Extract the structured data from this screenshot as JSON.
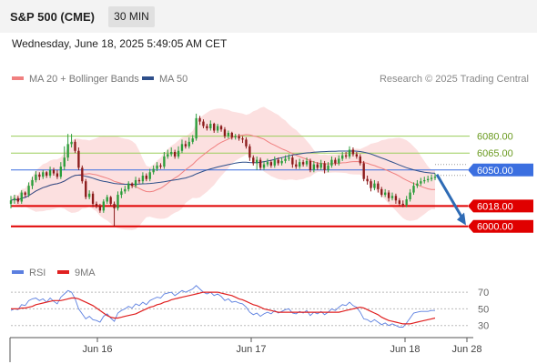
{
  "header": {
    "title": "S&P 500 (CME)",
    "timeframe": "30 MIN"
  },
  "datetime": "Wednesday, June 18, 2025 5:49:05 AM CET",
  "legend": {
    "items": [
      {
        "label": "MA 20 + Bollinger Bands",
        "color": "#f08080"
      },
      {
        "label": "MA 50",
        "color": "#2e4f8a"
      }
    ],
    "source": "Research © 2025 Trading Central"
  },
  "rsi_legend": {
    "items": [
      {
        "label": "RSI",
        "color": "#5b7fe0"
      },
      {
        "label": "9MA",
        "color": "#e02020"
      }
    ]
  },
  "colors": {
    "up": "#2a9d3a",
    "down": "#8b1a1a",
    "bollinger": "#fbd5d5",
    "ma20": "#f08080",
    "ma50": "#2e4f8a",
    "pivot": "#3b6fe0",
    "support": "#e00000",
    "resistance": "#9acd5a",
    "arrow": "#2e6bb5"
  },
  "chart_data": [
    {
      "type": "candlestick",
      "ylim": [
        5982,
        6108
      ],
      "x_ticks": [
        "Jun 16",
        "Jun 17",
        "Jun 18",
        "Jun 28"
      ],
      "levels": [
        {
          "label": "6080.00",
          "value": 6080,
          "kind": "resistance"
        },
        {
          "label": "6065.00",
          "value": 6065,
          "kind": "resistance"
        },
        {
          "label": "6050.00",
          "value": 6050,
          "kind": "pivot"
        },
        {
          "label": "6018.00",
          "value": 6018,
          "kind": "support"
        },
        {
          "label": "6000.00",
          "value": 6000,
          "kind": "support"
        }
      ],
      "close": [
        6023,
        6025,
        6022,
        6030,
        6028,
        6036,
        6041,
        6046,
        6044,
        6048,
        6045,
        6050,
        6047,
        6044,
        6053,
        6061,
        6073,
        6075,
        6067,
        6052,
        6040,
        6026,
        6029,
        6020,
        6018,
        6014,
        6022,
        6026,
        6020,
        6016,
        6028,
        6031,
        6033,
        6038,
        6036,
        6041,
        6040,
        6045,
        6042,
        6048,
        6051,
        6054,
        6053,
        6062,
        6064,
        6066,
        6062,
        6067,
        6073,
        6071,
        6075,
        6078,
        6096,
        6093,
        6089,
        6087,
        6091,
        6085,
        6089,
        6086,
        6080,
        6083,
        6079,
        6080,
        6078,
        6077,
        6071,
        6061,
        6056,
        6059,
        6052,
        6055,
        6057,
        6054,
        6059,
        6056,
        6058,
        6060,
        6061,
        6055,
        6053,
        6057,
        6055,
        6058,
        6050,
        6055,
        6052,
        6056,
        6050,
        6054,
        6059,
        6056,
        6060,
        6063,
        6062,
        6068,
        6064,
        6062,
        6056,
        6042,
        6040,
        6034,
        6038,
        6033,
        6028,
        6030,
        6025,
        6027,
        6023,
        6020,
        6019,
        6024,
        6030,
        6036,
        6038,
        6040,
        6041,
        6042,
        6043,
        6044
      ],
      "open": [
        6020,
        6023,
        6025,
        6022,
        6030,
        6028,
        6036,
        6041,
        6046,
        6044,
        6048,
        6045,
        6050,
        6047,
        6044,
        6053,
        6061,
        6073,
        6075,
        6067,
        6052,
        6040,
        6026,
        6029,
        6020,
        6018,
        6014,
        6022,
        6026,
        6020,
        6016,
        6028,
        6031,
        6033,
        6038,
        6036,
        6041,
        6040,
        6045,
        6042,
        6048,
        6051,
        6054,
        6053,
        6062,
        6064,
        6066,
        6062,
        6067,
        6073,
        6071,
        6075,
        6078,
        6096,
        6093,
        6089,
        6087,
        6091,
        6085,
        6089,
        6086,
        6080,
        6083,
        6079,
        6080,
        6078,
        6077,
        6071,
        6061,
        6056,
        6059,
        6052,
        6055,
        6057,
        6054,
        6059,
        6056,
        6058,
        6060,
        6061,
        6055,
        6053,
        6057,
        6055,
        6058,
        6050,
        6055,
        6052,
        6056,
        6050,
        6054,
        6059,
        6056,
        6060,
        6063,
        6062,
        6068,
        6064,
        6062,
        6056,
        6042,
        6040,
        6034,
        6038,
        6033,
        6028,
        6030,
        6025,
        6027,
        6023,
        6020,
        6019,
        6024,
        6030,
        6036,
        6038,
        6040,
        6041,
        6042,
        6043
      ],
      "high": [
        6027,
        6028,
        6027,
        6032,
        6031,
        6039,
        6044,
        6049,
        6048,
        6050,
        6049,
        6053,
        6052,
        6050,
        6057,
        6071,
        6082,
        6082,
        6077,
        6070,
        6054,
        6042,
        6032,
        6031,
        6022,
        6020,
        6024,
        6028,
        6027,
        6022,
        6031,
        6034,
        6036,
        6040,
        6039,
        6044,
        6043,
        6048,
        6047,
        6051,
        6054,
        6057,
        6056,
        6066,
        6068,
        6070,
        6068,
        6071,
        6077,
        6076,
        6079,
        6081,
        6100,
        6098,
        6095,
        6091,
        6094,
        6092,
        6091,
        6090,
        6088,
        6085,
        6084,
        6082,
        6082,
        6080,
        6079,
        6073,
        6063,
        6062,
        6061,
        6058,
        6060,
        6059,
        6062,
        6061,
        6061,
        6063,
        6064,
        6063,
        6059,
        6060,
        6059,
        6061,
        6060,
        6058,
        6057,
        6059,
        6058,
        6057,
        6062,
        6061,
        6063,
        6066,
        6066,
        6071,
        6070,
        6066,
        6064,
        6058,
        6045,
        6042,
        6041,
        6040,
        6035,
        6033,
        6032,
        6030,
        6029,
        6025,
        6023,
        6027,
        6033,
        6039,
        6041,
        6043,
        6044,
        6045,
        6046,
        6047
      ],
      "low": [
        6016,
        6020,
        6020,
        6020,
        6026,
        6026,
        6033,
        6039,
        6041,
        6042,
        6043,
        6043,
        6045,
        6042,
        6042,
        6050,
        6058,
        6070,
        6065,
        6050,
        6038,
        6024,
        6024,
        6017,
        6016,
        6012,
        6012,
        6020,
        6018,
        6000,
        6014,
        6025,
        6029,
        6031,
        6034,
        6034,
        6038,
        6038,
        6040,
        6040,
        6046,
        6049,
        6051,
        6051,
        6060,
        6062,
        6060,
        6060,
        6065,
        6069,
        6069,
        6073,
        6076,
        6090,
        6087,
        6085,
        6085,
        6083,
        6083,
        6084,
        6078,
        6078,
        6077,
        6077,
        6076,
        6074,
        6069,
        6058,
        6054,
        6050,
        6050,
        6050,
        6053,
        6052,
        6052,
        6054,
        6054,
        6056,
        6058,
        6052,
        6051,
        6051,
        6053,
        6053,
        6048,
        6048,
        6050,
        6050,
        6047,
        6048,
        6052,
        6054,
        6054,
        6058,
        6060,
        6060,
        6062,
        6060,
        6054,
        6040,
        6037,
        6031,
        6032,
        6030,
        6026,
        6026,
        6022,
        6023,
        6020,
        6018,
        6017,
        6017,
        6022,
        6028,
        6034,
        6036,
        6038,
        6039,
        6040,
        6041
      ]
    },
    {
      "type": "line",
      "ylim": [
        22,
        80
      ],
      "y_ticks": [
        70,
        50,
        30
      ],
      "series": [
        {
          "name": "RSI",
          "values": [
            48,
            50,
            49,
            55,
            54,
            60,
            62,
            63,
            60,
            62,
            58,
            63,
            59,
            56,
            64,
            68,
            72,
            70,
            62,
            50,
            44,
            38,
            41,
            37,
            36,
            34,
            41,
            44,
            39,
            35,
            45,
            48,
            50,
            53,
            51,
            56,
            54,
            58,
            55,
            60,
            62,
            64,
            63,
            68,
            69,
            70,
            66,
            69,
            72,
            70,
            72,
            74,
            78,
            74,
            70,
            68,
            70,
            66,
            68,
            65,
            60,
            62,
            58,
            59,
            57,
            56,
            52,
            46,
            43,
            45,
            41,
            44,
            46,
            44,
            48,
            45,
            47,
            49,
            50,
            45,
            44,
            47,
            45,
            48,
            42,
            46,
            44,
            47,
            43,
            46,
            50,
            48,
            52,
            55,
            54,
            58,
            54,
            52,
            46,
            38,
            37,
            34,
            37,
            34,
            31,
            33,
            30,
            32,
            30,
            28,
            28,
            33,
            39,
            45,
            46,
            47,
            47,
            47,
            48,
            48
          ]
        },
        {
          "name": "9MA",
          "values": [
            50,
            50,
            50,
            51,
            51,
            52,
            53,
            55,
            56,
            57,
            58,
            59,
            60,
            60,
            60,
            61,
            62,
            63,
            63,
            62,
            60,
            58,
            56,
            54,
            51,
            48,
            45,
            42,
            40,
            39,
            39,
            40,
            41,
            42,
            43,
            44,
            46,
            48,
            50,
            52,
            53,
            55,
            56,
            58,
            59,
            61,
            62,
            63,
            64,
            65,
            66,
            67,
            68,
            69,
            70,
            70,
            70,
            70,
            70,
            69,
            68,
            67,
            66,
            64,
            62,
            61,
            59,
            57,
            55,
            54,
            52,
            50,
            49,
            48,
            47,
            46,
            46,
            46,
            46,
            46,
            46,
            46,
            46,
            46,
            46,
            46,
            46,
            46,
            46,
            46,
            46,
            46,
            46,
            47,
            48,
            49,
            50,
            51,
            52,
            51,
            49,
            47,
            45,
            43,
            40,
            38,
            36,
            35,
            34,
            33,
            32,
            32,
            32,
            33,
            34,
            35,
            36,
            37,
            38,
            39
          ]
        }
      ]
    }
  ]
}
